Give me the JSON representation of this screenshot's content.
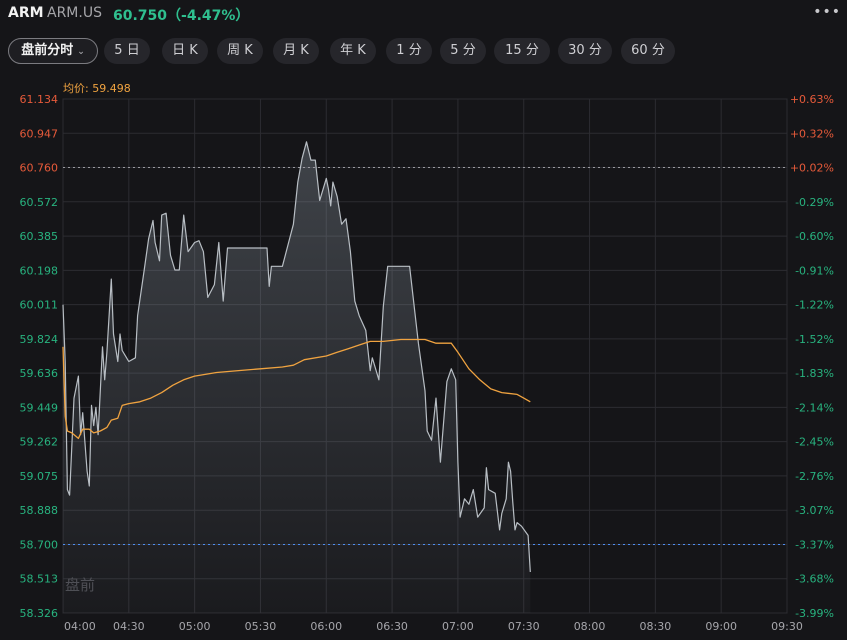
{
  "header": {
    "symbol": "ARM",
    "code": "ARM.US",
    "price_change": "60.750（-4.47%）",
    "more_icon": "more-dots-icon"
  },
  "tabs": [
    {
      "label": "盘前分时",
      "active": true
    },
    {
      "label": "5 日"
    },
    {
      "label": "日 K"
    },
    {
      "label": "周 K"
    },
    {
      "label": "月 K"
    },
    {
      "label": "年 K"
    },
    {
      "label": "1 分"
    },
    {
      "label": "5 分"
    },
    {
      "label": "15 分"
    },
    {
      "label": "30 分"
    },
    {
      "label": "60 分"
    }
  ],
  "avg_label": "均价: 59.498",
  "watermark": "盘前",
  "colors": {
    "up": "#e65a3a",
    "down": "#28b37f",
    "price_line": "#b8bec4",
    "avg_line": "#f0a340",
    "prev_close_line": "#9a9aa0",
    "current_line": "#4f8df0"
  },
  "chart_data": {
    "type": "line",
    "title": "",
    "xlabel": "",
    "ylabel": "",
    "ylim": [
      58.326,
      61.134
    ],
    "y_ticks": [
      "61.134",
      "60.947",
      "60.760",
      "60.572",
      "60.385",
      "60.198",
      "60.011",
      "59.824",
      "59.636",
      "59.449",
      "59.262",
      "59.075",
      "58.888",
      "58.700",
      "58.513",
      "58.326"
    ],
    "y_right_ticks": [
      "+0.63%",
      "+0.32%",
      "+0.02%",
      "-0.29%",
      "-0.60%",
      "-0.91%",
      "-1.22%",
      "-1.52%",
      "-1.83%",
      "-2.14%",
      "-2.45%",
      "-2.76%",
      "-3.07%",
      "-3.37%",
      "-3.68%",
      "-3.99%"
    ],
    "x_ticks": [
      "04:00",
      "04:30",
      "05:00",
      "05:30",
      "06:00",
      "06:30",
      "07:00",
      "07:30",
      "08:00",
      "08:30",
      "09:00",
      "09:30"
    ],
    "x_range": [
      "04:00",
      "09:30"
    ],
    "prev_close": 60.76,
    "current_price": 58.7,
    "series": [
      {
        "role": "price",
        "points": [
          [
            "04:00",
            60.01
          ],
          [
            "04:01",
            59.7
          ],
          [
            "04:02",
            59.0
          ],
          [
            "04:03",
            58.97
          ],
          [
            "04:05",
            59.5
          ],
          [
            "04:07",
            59.62
          ],
          [
            "04:08",
            59.3
          ],
          [
            "04:09",
            59.42
          ],
          [
            "04:11",
            59.1
          ],
          [
            "04:12",
            59.02
          ],
          [
            "04:13",
            59.46
          ],
          [
            "04:14",
            59.35
          ],
          [
            "04:15",
            59.45
          ],
          [
            "04:16",
            59.3
          ],
          [
            "04:18",
            59.78
          ],
          [
            "04:19",
            59.6
          ],
          [
            "04:20",
            59.75
          ],
          [
            "04:22",
            60.15
          ],
          [
            "04:23",
            59.85
          ],
          [
            "04:25",
            59.7
          ],
          [
            "04:26",
            59.85
          ],
          [
            "04:27",
            59.76
          ],
          [
            "04:30",
            59.7
          ],
          [
            "04:33",
            59.72
          ],
          [
            "04:34",
            59.95
          ],
          [
            "04:37",
            60.2
          ],
          [
            "04:39",
            60.37
          ],
          [
            "04:41",
            60.47
          ],
          [
            "04:42",
            60.35
          ],
          [
            "04:44",
            60.25
          ],
          [
            "04:45",
            60.5
          ],
          [
            "04:47",
            60.51
          ],
          [
            "04:49",
            60.28
          ],
          [
            "04:51",
            60.2
          ],
          [
            "04:53",
            60.2
          ],
          [
            "04:55",
            60.5
          ],
          [
            "04:57",
            60.3
          ],
          [
            "05:00",
            60.35
          ],
          [
            "05:02",
            60.36
          ],
          [
            "05:04",
            60.3
          ],
          [
            "05:06",
            60.05
          ],
          [
            "05:09",
            60.12
          ],
          [
            "05:11",
            60.35
          ],
          [
            "05:13",
            60.03
          ],
          [
            "05:15",
            60.32
          ],
          [
            "05:22",
            60.32
          ],
          [
            "05:29",
            60.32
          ],
          [
            "05:33",
            60.32
          ],
          [
            "05:34",
            60.11
          ],
          [
            "05:35",
            60.22
          ],
          [
            "05:36",
            60.22
          ],
          [
            "05:40",
            60.22
          ],
          [
            "05:45",
            60.45
          ],
          [
            "05:47",
            60.68
          ],
          [
            "05:49",
            60.81
          ],
          [
            "05:51",
            60.9
          ],
          [
            "05:53",
            60.8
          ],
          [
            "05:55",
            60.8
          ],
          [
            "05:57",
            60.58
          ],
          [
            "06:00",
            60.7
          ],
          [
            "06:01",
            60.64
          ],
          [
            "06:02",
            60.55
          ],
          [
            "06:03",
            60.68
          ],
          [
            "06:05",
            60.6
          ],
          [
            "06:07",
            60.45
          ],
          [
            "06:09",
            60.48
          ],
          [
            "06:11",
            60.3
          ],
          [
            "06:13",
            60.03
          ],
          [
            "06:15",
            59.95
          ],
          [
            "06:18",
            59.87
          ],
          [
            "06:20",
            59.65
          ],
          [
            "06:21",
            59.72
          ],
          [
            "06:24",
            59.6
          ],
          [
            "06:26",
            60.0
          ],
          [
            "06:28",
            60.22
          ],
          [
            "06:30",
            60.22
          ],
          [
            "06:34",
            60.22
          ],
          [
            "06:38",
            60.22
          ],
          [
            "06:42",
            59.8
          ],
          [
            "06:45",
            59.54
          ],
          [
            "06:46",
            59.32
          ],
          [
            "06:48",
            59.27
          ],
          [
            "06:50",
            59.5
          ],
          [
            "06:52",
            59.15
          ],
          [
            "06:53",
            59.3
          ],
          [
            "06:55",
            59.59
          ],
          [
            "06:57",
            59.66
          ],
          [
            "06:59",
            59.6
          ],
          [
            "07:00",
            59.15
          ],
          [
            "07:01",
            58.85
          ],
          [
            "07:03",
            58.95
          ],
          [
            "07:05",
            58.92
          ],
          [
            "07:07",
            59.0
          ],
          [
            "07:09",
            58.85
          ],
          [
            "07:12",
            58.9
          ],
          [
            "07:13",
            59.12
          ],
          [
            "07:14",
            59.0
          ],
          [
            "07:17",
            58.98
          ],
          [
            "07:19",
            58.78
          ],
          [
            "07:20",
            58.87
          ],
          [
            "07:22",
            58.95
          ],
          [
            "07:23",
            59.15
          ],
          [
            "07:24",
            59.1
          ],
          [
            "07:25",
            58.93
          ],
          [
            "07:26",
            58.78
          ],
          [
            "07:27",
            58.82
          ],
          [
            "07:29",
            58.8
          ],
          [
            "07:32",
            58.75
          ],
          [
            "07:33",
            58.55
          ]
        ]
      },
      {
        "role": "average",
        "points": [
          [
            "04:00",
            59.78
          ],
          [
            "04:01",
            59.4
          ],
          [
            "04:02",
            59.32
          ],
          [
            "04:04",
            59.31
          ],
          [
            "04:07",
            59.28
          ],
          [
            "04:09",
            59.33
          ],
          [
            "04:12",
            59.33
          ],
          [
            "04:14",
            59.31
          ],
          [
            "04:17",
            59.32
          ],
          [
            "04:20",
            59.34
          ],
          [
            "04:22",
            59.38
          ],
          [
            "04:25",
            59.39
          ],
          [
            "04:27",
            59.46
          ],
          [
            "04:30",
            59.47
          ],
          [
            "04:35",
            59.48
          ],
          [
            "04:40",
            59.5
          ],
          [
            "04:45",
            59.53
          ],
          [
            "04:50",
            59.57
          ],
          [
            "04:55",
            59.6
          ],
          [
            "05:00",
            59.62
          ],
          [
            "05:10",
            59.64
          ],
          [
            "05:20",
            59.65
          ],
          [
            "05:30",
            59.66
          ],
          [
            "05:40",
            59.67
          ],
          [
            "05:45",
            59.68
          ],
          [
            "05:50",
            59.71
          ],
          [
            "06:00",
            59.73
          ],
          [
            "06:05",
            59.75
          ],
          [
            "06:10",
            59.77
          ],
          [
            "06:15",
            59.79
          ],
          [
            "06:20",
            59.81
          ],
          [
            "06:26",
            59.81
          ],
          [
            "06:34",
            59.82
          ],
          [
            "06:45",
            59.82
          ],
          [
            "06:50",
            59.8
          ],
          [
            "06:57",
            59.8
          ],
          [
            "07:00",
            59.75
          ],
          [
            "07:05",
            59.66
          ],
          [
            "07:10",
            59.6
          ],
          [
            "07:15",
            59.55
          ],
          [
            "07:20",
            59.53
          ],
          [
            "07:27",
            59.52
          ],
          [
            "07:30",
            59.5
          ],
          [
            "07:33",
            59.48
          ]
        ]
      }
    ]
  }
}
